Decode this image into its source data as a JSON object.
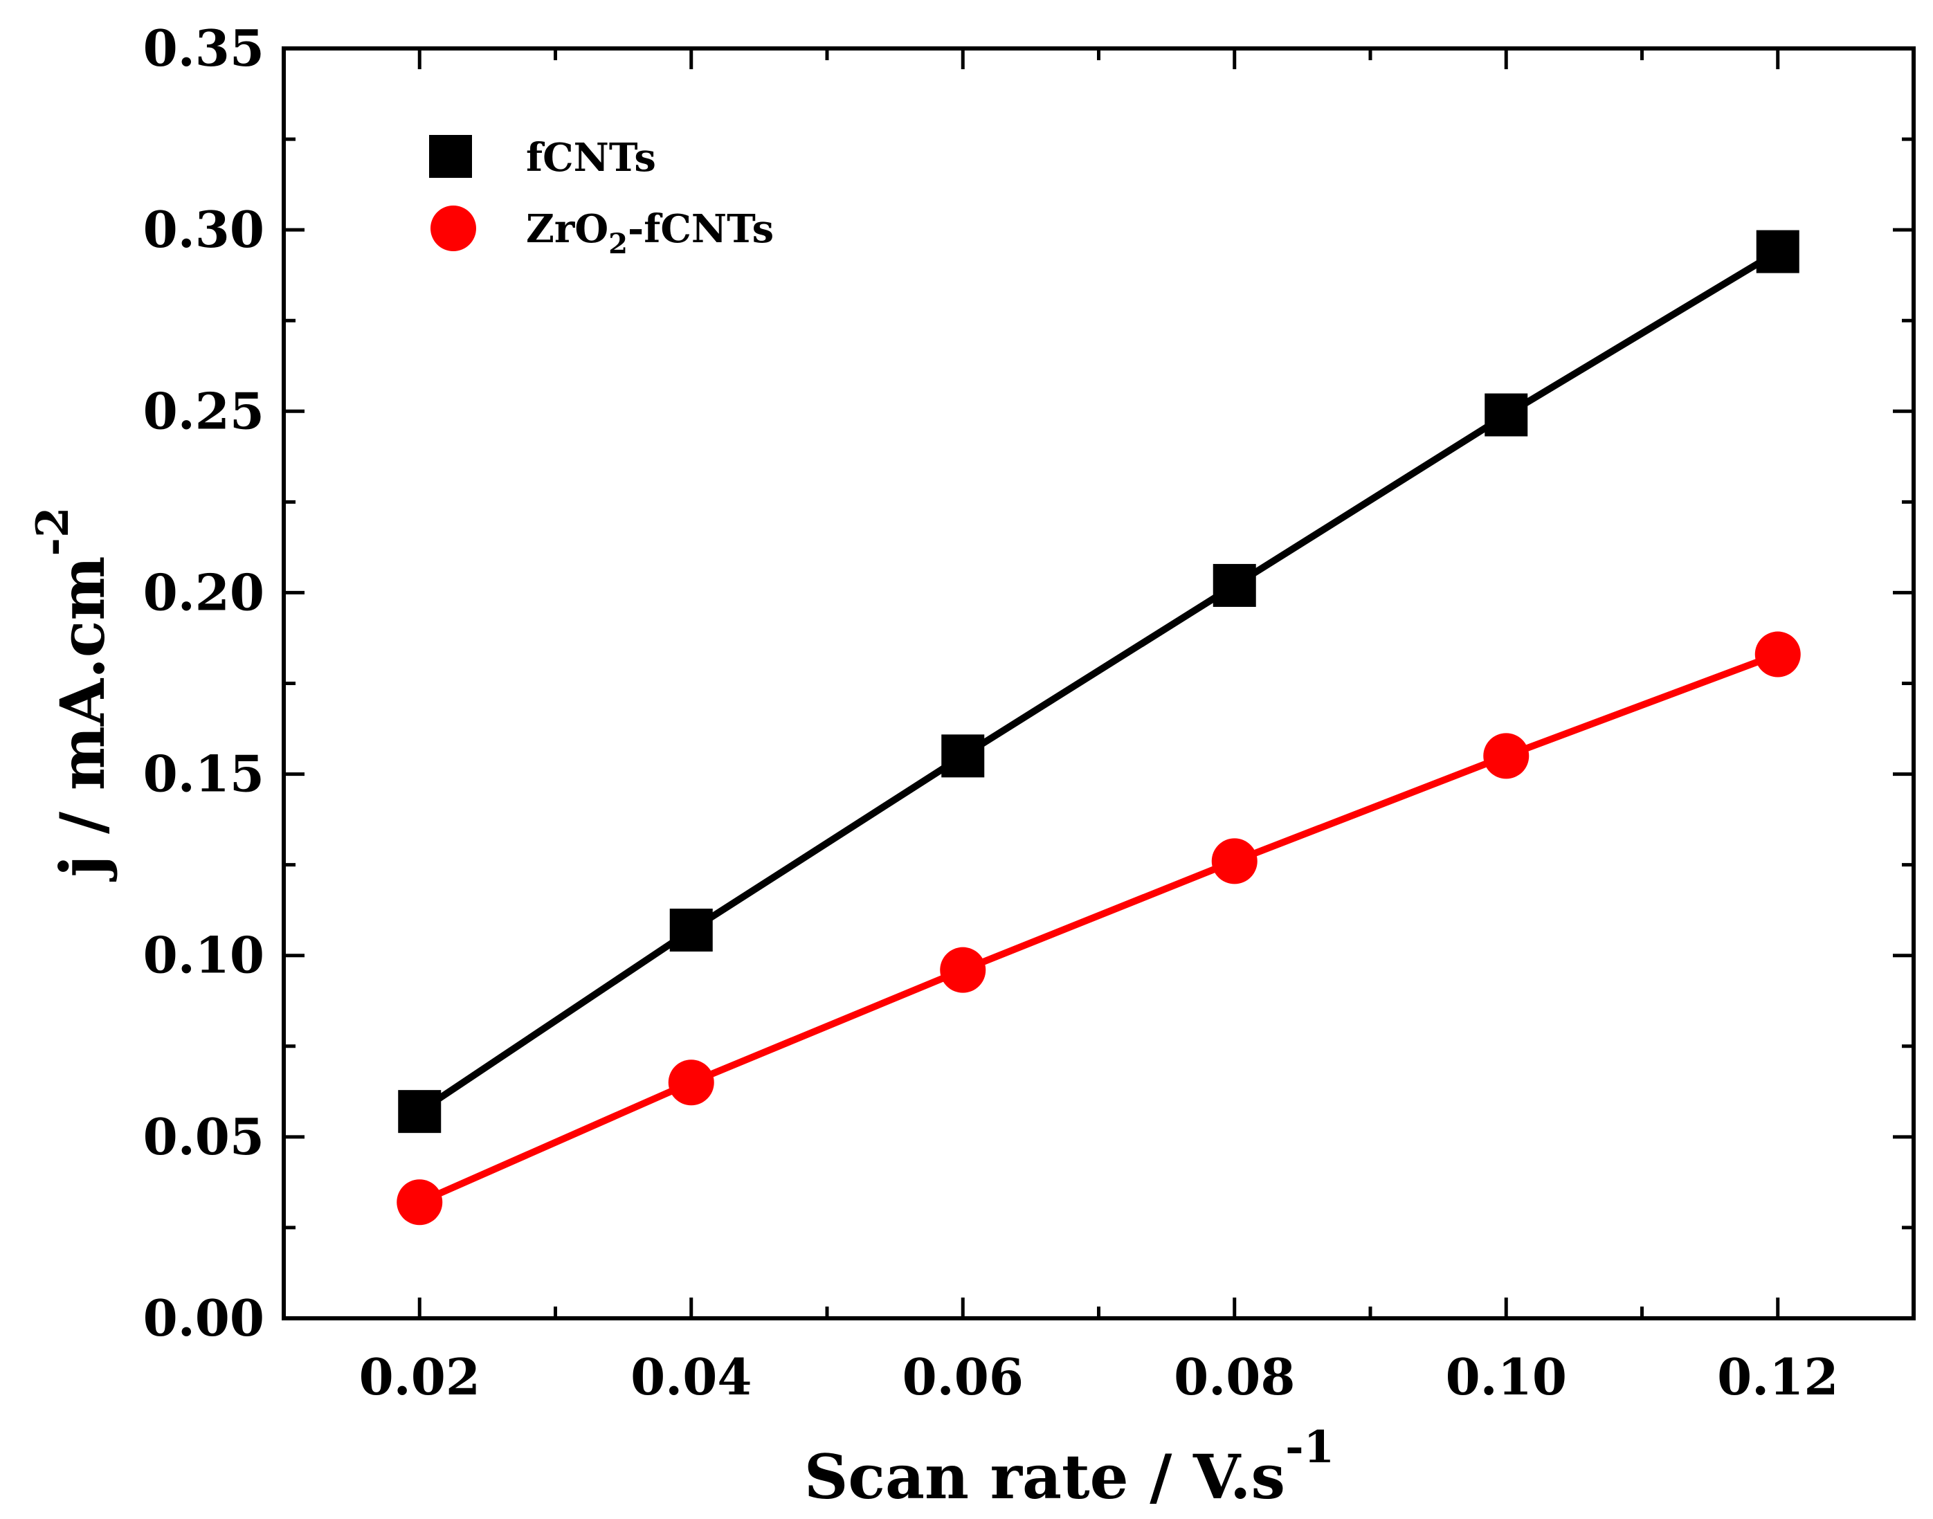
{
  "chart_data": {
    "type": "line",
    "title": "",
    "xlabel": "Scan rate / V.s",
    "xlabel_sup": "-1",
    "ylabel": "j / mA.cm",
    "ylabel_sup": "-2",
    "xlim": [
      0.01,
      0.13
    ],
    "ylim": [
      0.0,
      0.35
    ],
    "x_ticks": [
      0.02,
      0.04,
      0.06,
      0.08,
      0.1,
      0.12
    ],
    "x_tick_labels": [
      "0.02",
      "0.04",
      "0.06",
      "0.08",
      "0.10",
      "0.12"
    ],
    "y_ticks": [
      0.0,
      0.05,
      0.1,
      0.15,
      0.2,
      0.25,
      0.3,
      0.35
    ],
    "y_tick_labels": [
      "0.00",
      "0.05",
      "0.10",
      "0.15",
      "0.20",
      "0.25",
      "0.30",
      "0.35"
    ],
    "grid": false,
    "legend_position": "top-left",
    "x": [
      0.02,
      0.04,
      0.06,
      0.08,
      0.1,
      0.12
    ],
    "series": [
      {
        "name": "fCNTs",
        "marker": "square",
        "color": "#000000",
        "values": [
          0.057,
          0.107,
          0.155,
          0.202,
          0.249,
          0.294
        ]
      },
      {
        "name": "ZrO2-fCNTs",
        "marker": "circle",
        "color": "#ff0000",
        "values": [
          0.032,
          0.065,
          0.096,
          0.126,
          0.155,
          0.183
        ]
      }
    ],
    "legend": [
      {
        "label": "fCNTs",
        "marker": "square",
        "color": "#000000"
      },
      {
        "label_main": "ZrO",
        "label_sub": "2",
        "label_rest": "-fCNTs",
        "marker": "circle",
        "color": "#ff0000"
      }
    ]
  }
}
